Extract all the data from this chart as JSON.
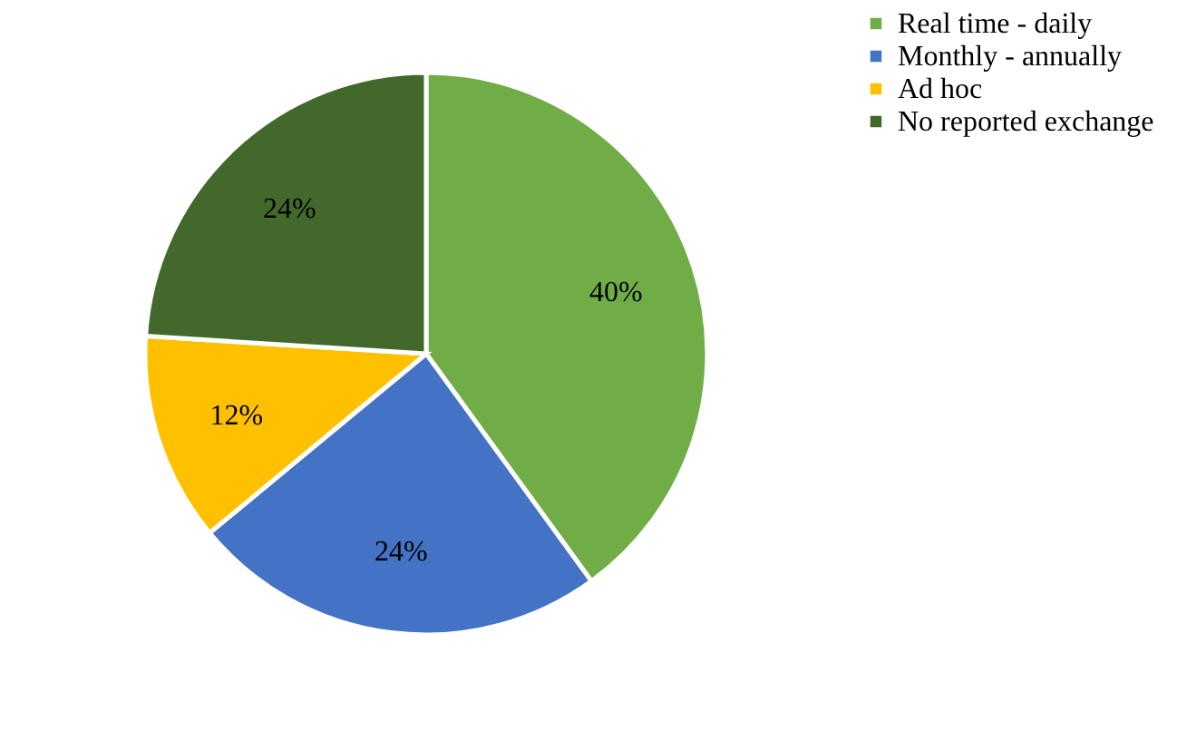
{
  "chart_data": {
    "type": "pie",
    "categories": [
      "Real time - daily",
      "Monthly - annually",
      "Ad hoc",
      "No reported exchange"
    ],
    "values": [
      40,
      24,
      12,
      24
    ],
    "value_labels": [
      "40%",
      "24%",
      "12%",
      "24%"
    ],
    "colors": [
      "#70ad47",
      "#4472c4",
      "#ffc000",
      "#43682b"
    ],
    "legend": "top right"
  }
}
